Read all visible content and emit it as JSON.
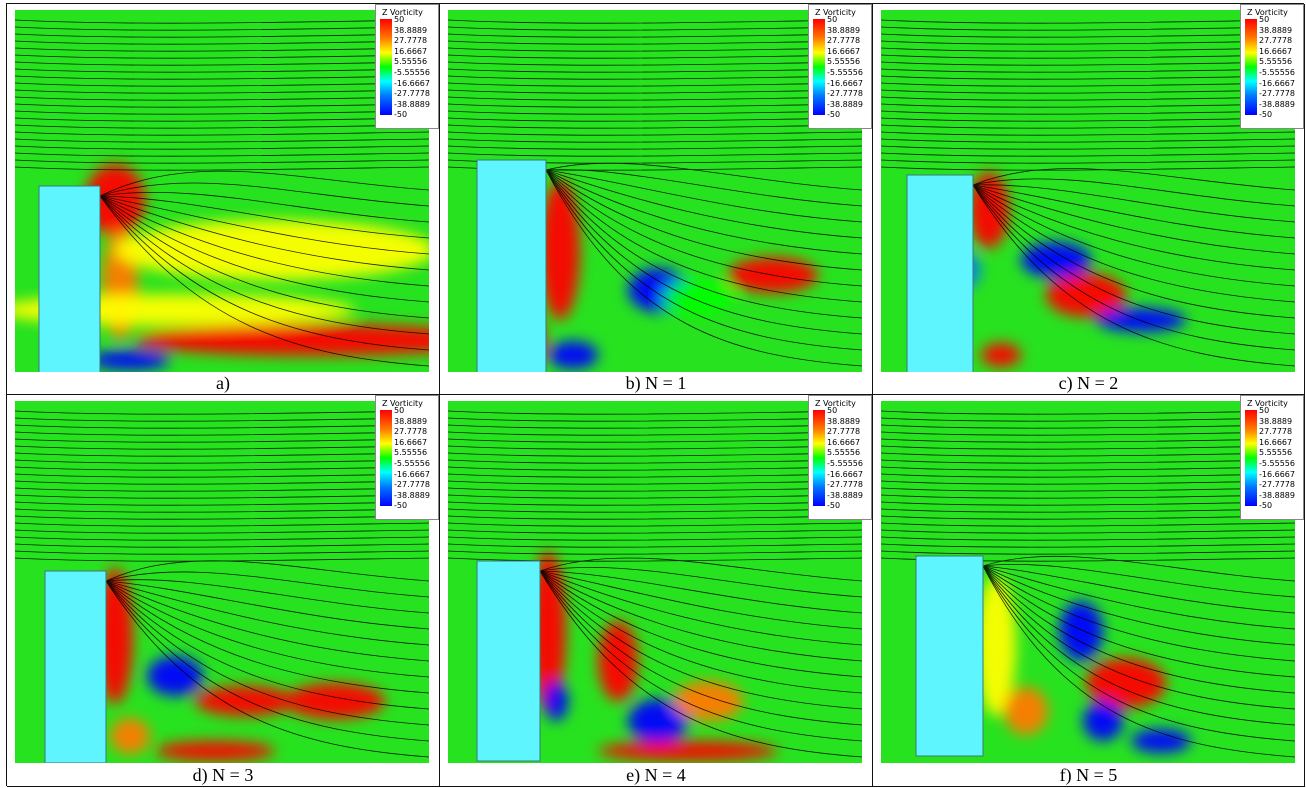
{
  "figure": {
    "legend": {
      "title": "Z Vorticity",
      "ticks": [
        "50",
        "38.8889",
        "27.7778",
        "16.6667",
        "5.55556",
        "-5.55556",
        "-16.6667",
        "-27.7778",
        "-38.8889",
        "-50"
      ],
      "colors": [
        "#ff0000",
        "#ff7a00",
        "#ffff00",
        "#00ff00",
        "#00ffff",
        "#0078ff",
        "#0000ff"
      ]
    },
    "panels": [
      {
        "caption": "a)"
      },
      {
        "caption": "b) N = 1"
      },
      {
        "caption": "c) N = 2"
      },
      {
        "caption": "d) N = 3"
      },
      {
        "caption": "e) N = 4"
      },
      {
        "caption": "f) N = 5"
      }
    ],
    "style": {
      "obstacle_color": "#5ff5ff",
      "background_flow": "#27e21f"
    }
  }
}
